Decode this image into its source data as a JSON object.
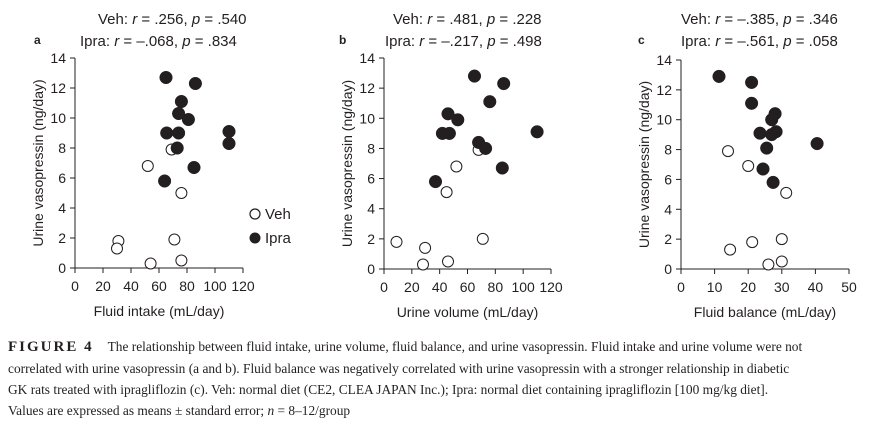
{
  "figure": {
    "label": "FIGURE 4",
    "caption_line1": "The relationship between fluid intake, urine volume, fluid balance, and urine vasopressin. Fluid intake and urine volume were not",
    "caption_line2": "correlated with urine vasopressin (a and b). Fluid balance was negatively correlated with urine vasopressin with a stronger relationship in diabetic",
    "caption_line3": "GK rats treated with ipragliflozin (c). Veh: normal diet (CE2, CLEA JAPAN Inc.); Ipra: normal diet containing ipragliflozin [100 mg/kg diet].",
    "caption_line4_pre": "Values are expressed as means ± standard error; ",
    "caption_line4_n": "n",
    "caption_line4_post": " = 8–12/group"
  },
  "legend": {
    "entries": [
      {
        "name": "Veh",
        "marker": "open-circle"
      },
      {
        "name": "Ipra",
        "marker": "filled-circle"
      }
    ]
  },
  "chart_data": [
    {
      "panel": "a",
      "type": "scatter",
      "title_lines": [
        {
          "group": "Veh",
          "r": ".256",
          "p": ".540"
        },
        {
          "group": "Ipra",
          "r": "–.068",
          "p": ".834"
        }
      ],
      "xlabel": "Fluid intake (mL/day)",
      "ylabel": "Urine vasopressin (ng/day)",
      "xlim": [
        0,
        120
      ],
      "ylim": [
        0,
        14
      ],
      "xticks": [
        0,
        20,
        40,
        60,
        80,
        100,
        120
      ],
      "yticks": [
        0,
        2,
        4,
        6,
        8,
        10,
        12,
        14
      ],
      "grid": false,
      "legend": "right",
      "series": [
        {
          "name": "Veh",
          "marker": "open-circle",
          "points": [
            [
              69,
              7.9
            ],
            [
              52,
              6.8
            ],
            [
              76,
              5.0
            ],
            [
              31,
              1.8
            ],
            [
              30,
              1.3
            ],
            [
              71,
              1.9
            ],
            [
              54,
              0.3
            ],
            [
              76,
              0.5
            ]
          ]
        },
        {
          "name": "Ipra",
          "marker": "filled-circle",
          "points": [
            [
              65,
              12.7
            ],
            [
              86,
              12.3
            ],
            [
              76,
              11.1
            ],
            [
              74,
              10.3
            ],
            [
              81,
              9.9
            ],
            [
              65.5,
              9.0
            ],
            [
              74,
              9.0
            ],
            [
              110,
              9.1
            ],
            [
              110,
              8.3
            ],
            [
              73,
              8.0
            ],
            [
              85,
              6.7
            ],
            [
              64,
              5.8
            ]
          ]
        }
      ]
    },
    {
      "panel": "b",
      "type": "scatter",
      "title_lines": [
        {
          "group": "Veh",
          "r": ".481",
          "p": ".228"
        },
        {
          "group": "Ipra",
          "r": "–.217",
          "p": ".498"
        }
      ],
      "xlabel": "Urine volume (mL/day)",
      "ylabel": "Urine vasopressin (ng/day)",
      "xlim": [
        0,
        120
      ],
      "ylim": [
        0,
        14
      ],
      "xticks": [
        0,
        20,
        40,
        60,
        80,
        100,
        120
      ],
      "yticks": [
        0,
        2,
        4,
        6,
        8,
        10,
        12,
        14
      ],
      "grid": false,
      "series": [
        {
          "name": "Veh",
          "marker": "open-circle",
          "points": [
            [
              68,
              7.9
            ],
            [
              52,
              6.8
            ],
            [
              45,
              5.1
            ],
            [
              9,
              1.8
            ],
            [
              29.5,
              1.4
            ],
            [
              71,
              2.0
            ],
            [
              28,
              0.3
            ],
            [
              46,
              0.5
            ]
          ]
        },
        {
          "name": "Ipra",
          "marker": "filled-circle",
          "points": [
            [
              65,
              12.8
            ],
            [
              86,
              12.3
            ],
            [
              76,
              11.1
            ],
            [
              46,
              10.3
            ],
            [
              53,
              9.9
            ],
            [
              42,
              9.0
            ],
            [
              47,
              9.0
            ],
            [
              110,
              9.1
            ],
            [
              68,
              8.4
            ],
            [
              73,
              8.0
            ],
            [
              85,
              6.7
            ],
            [
              37,
              5.8
            ]
          ]
        }
      ]
    },
    {
      "panel": "c",
      "type": "scatter",
      "title_lines": [
        {
          "group": "Veh",
          "r": "–.385",
          "p": ".346"
        },
        {
          "group": "Ipra",
          "r": "–.561",
          "p": ".058"
        }
      ],
      "xlabel": "Fluid balance (mL/day)",
      "ylabel": "Urine vasopressin (ng/day)",
      "xlim": [
        0,
        50
      ],
      "ylim": [
        0,
        14
      ],
      "xticks": [
        0,
        10,
        20,
        30,
        40,
        50
      ],
      "yticks": [
        0,
        2,
        4,
        6,
        8,
        10,
        12,
        14
      ],
      "grid": false,
      "series": [
        {
          "name": "Veh",
          "marker": "open-circle",
          "points": [
            [
              14,
              7.9
            ],
            [
              20,
              6.9
            ],
            [
              31.3,
              5.1
            ],
            [
              14.6,
              1.3
            ],
            [
              21.2,
              1.8
            ],
            [
              30,
              2.0
            ],
            [
              26,
              0.3
            ],
            [
              30,
              0.5
            ]
          ]
        },
        {
          "name": "Ipra",
          "marker": "filled-circle",
          "points": [
            [
              11.3,
              12.9
            ],
            [
              21,
              12.5
            ],
            [
              21,
              11.1
            ],
            [
              28,
              10.4
            ],
            [
              27,
              10.0
            ],
            [
              23.5,
              9.1
            ],
            [
              28.3,
              9.2
            ],
            [
              27,
              9.0
            ],
            [
              40.5,
              8.4
            ],
            [
              25.5,
              8.1
            ],
            [
              24.4,
              6.7
            ],
            [
              27.4,
              5.8
            ]
          ]
        }
      ]
    }
  ]
}
